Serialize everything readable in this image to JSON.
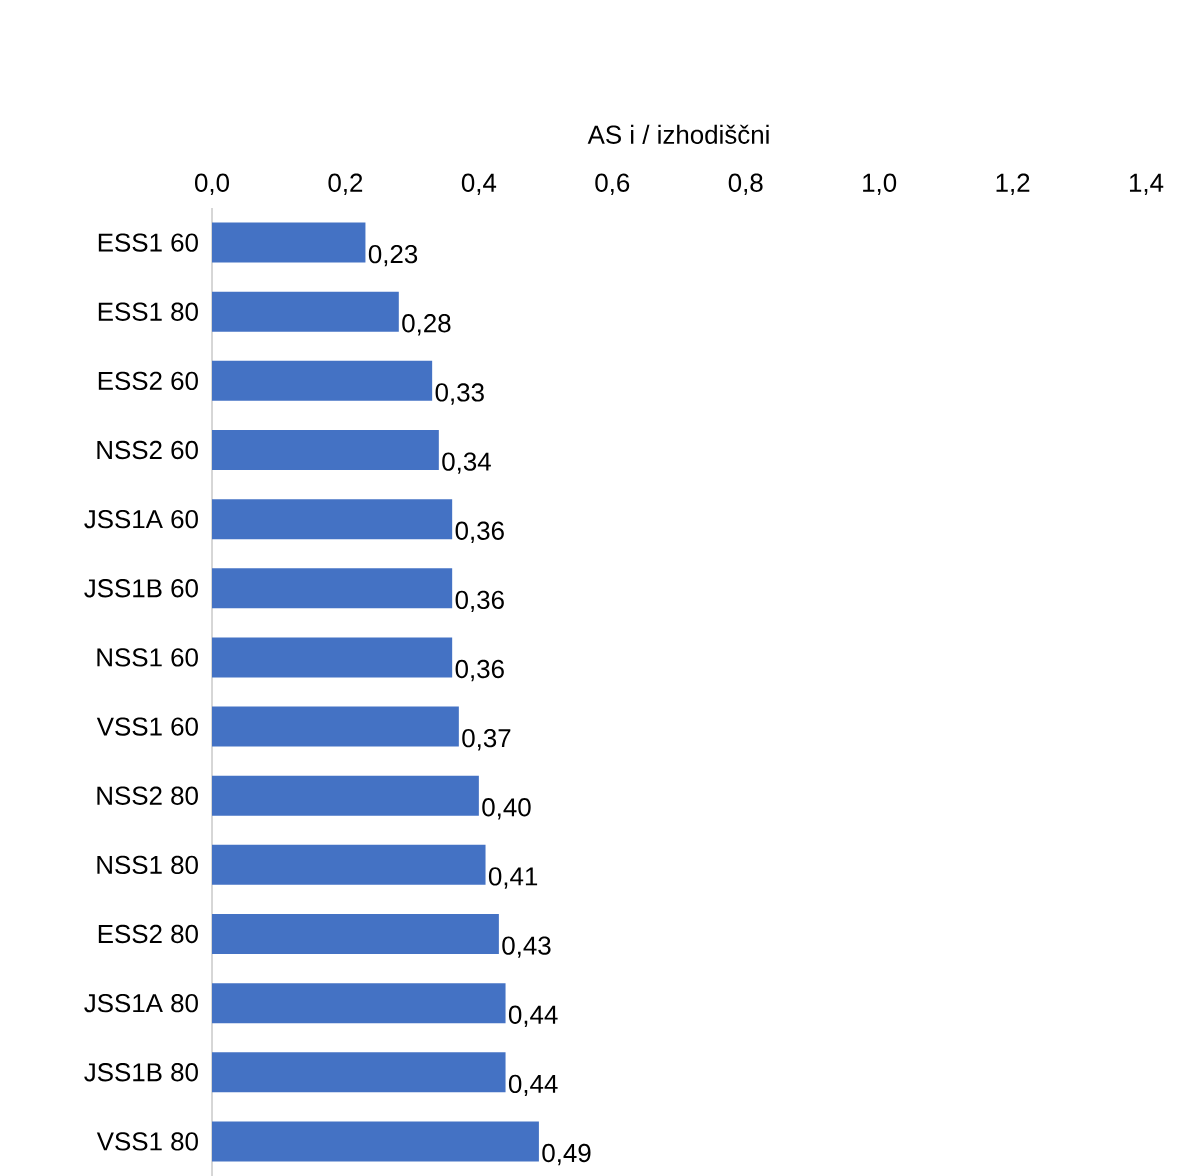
{
  "chart_data": {
    "type": "bar",
    "orientation": "horizontal",
    "xlabel": "AS i / izhodiščni",
    "categories": [
      "ESS1 60",
      "ESS1 80",
      "ESS2 60",
      "NSS2 60",
      "JSS1A 60",
      "JSS1B 60",
      "NSS1 60",
      "VSS1 60",
      "NSS2 80",
      "NSS1 80",
      "ESS2 80",
      "JSS1A 80",
      "JSS1B 80",
      "VSS1 80"
    ],
    "values": [
      0.23,
      0.28,
      0.33,
      0.34,
      0.36,
      0.36,
      0.36,
      0.37,
      0.4,
      0.41,
      0.43,
      0.44,
      0.44,
      0.49
    ],
    "value_labels": [
      "0,23",
      "0,28",
      "0,33",
      "0,34",
      "0,36",
      "0,36",
      "0,36",
      "0,37",
      "0,40",
      "0,41",
      "0,43",
      "0,44",
      "0,44",
      "0,49"
    ],
    "color": "#4472c4",
    "xlim": [
      0,
      1.4
    ],
    "xticks": [
      {
        "value": 0,
        "label": "0,0"
      },
      {
        "value": 0.2,
        "label": "0,2"
      },
      {
        "value": 0.4,
        "label": "0,4"
      },
      {
        "value": 0.6,
        "label": "0,6"
      },
      {
        "value": 0.8,
        "label": "0,8"
      },
      {
        "value": 1.0,
        "label": "1,0"
      },
      {
        "value": 1.2,
        "label": "1,2"
      },
      {
        "value": 1.4,
        "label": "1,4"
      }
    ]
  }
}
